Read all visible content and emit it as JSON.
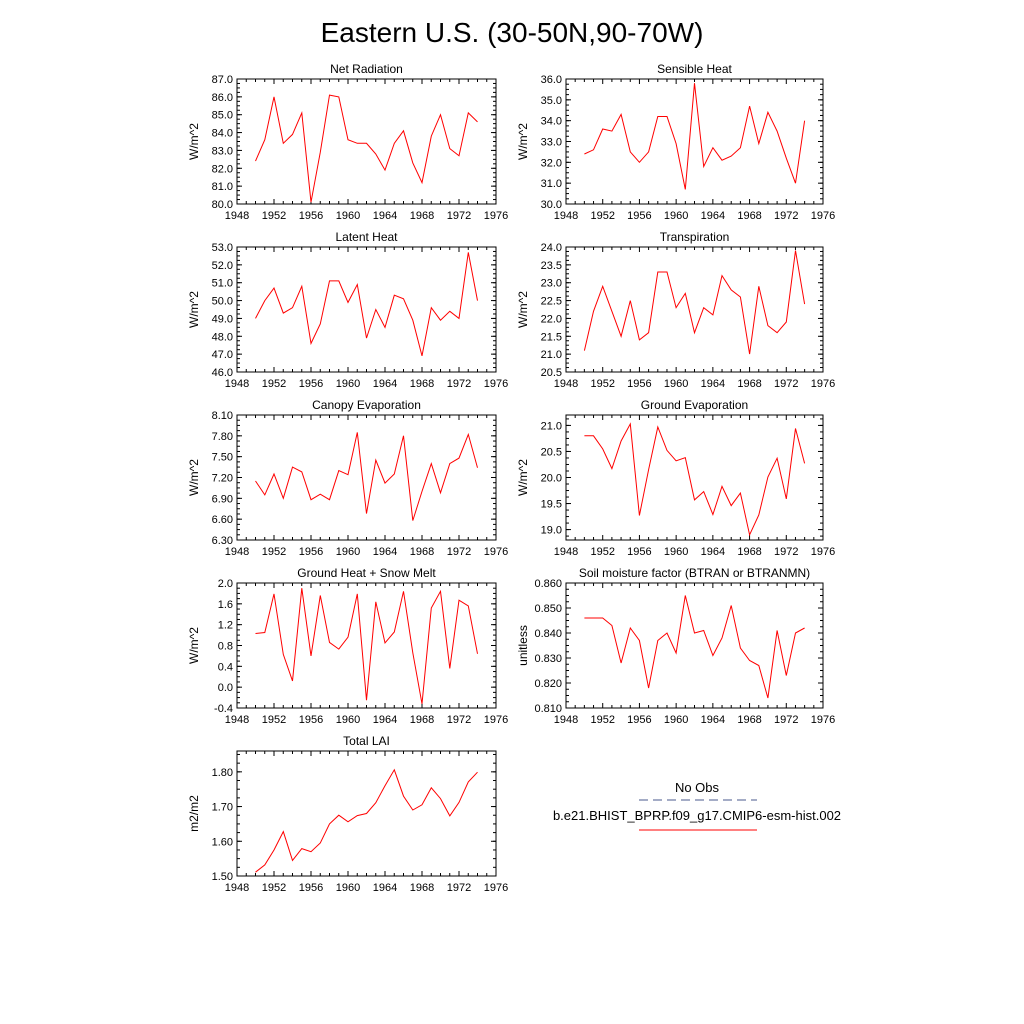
{
  "figure": {
    "title": "Eastern U.S. (30-50N,90-70W)",
    "line_color": "#ff0000",
    "legend": {
      "obs_label": "No Obs",
      "obs_style": "dashed",
      "obs_color": "#4a5a8c",
      "model_label": "b.e21.BHIST_BPRP.f09_g17.CMIP6-esm-hist.002",
      "model_color": "#ff0000"
    }
  },
  "chart_data": [
    {
      "type": "line",
      "title": "Net Radiation",
      "ylabel": "W/m^2",
      "xlim": [
        1948,
        1976
      ],
      "xticks": [
        1948,
        1952,
        1956,
        1960,
        1964,
        1968,
        1972,
        1976
      ],
      "ylim": [
        80.0,
        87.0
      ],
      "yticks": [
        "80.0",
        "81.0",
        "82.0",
        "83.0",
        "84.0",
        "85.0",
        "86.0",
        "87.0"
      ],
      "x": [
        1950,
        1951,
        1952,
        1953,
        1954,
        1955,
        1956,
        1957,
        1958,
        1959,
        1960,
        1961,
        1962,
        1963,
        1964,
        1965,
        1966,
        1967,
        1968,
        1969,
        1970,
        1971,
        1972,
        1973,
        1974
      ],
      "series": [
        {
          "values": [
            82.4,
            83.6,
            86.0,
            83.4,
            83.9,
            85.1,
            80.1,
            82.9,
            86.1,
            86.0,
            83.6,
            83.4,
            83.4,
            82.8,
            81.9,
            83.4,
            84.1,
            82.3,
            81.2,
            83.8,
            85.0,
            83.1,
            82.7,
            85.1,
            84.6
          ]
        }
      ]
    },
    {
      "type": "line",
      "title": "Sensible Heat",
      "ylabel": "W/m^2",
      "xlim": [
        1948,
        1976
      ],
      "xticks": [
        1948,
        1952,
        1956,
        1960,
        1964,
        1968,
        1972,
        1976
      ],
      "ylim": [
        30.0,
        36.0
      ],
      "yticks": [
        "30.0",
        "31.0",
        "32.0",
        "33.0",
        "34.0",
        "35.0",
        "36.0"
      ],
      "x": [
        1950,
        1951,
        1952,
        1953,
        1954,
        1955,
        1956,
        1957,
        1958,
        1959,
        1960,
        1961,
        1962,
        1963,
        1964,
        1965,
        1966,
        1967,
        1968,
        1969,
        1970,
        1971,
        1972,
        1973,
        1974
      ],
      "series": [
        {
          "values": [
            32.4,
            32.6,
            33.6,
            33.5,
            34.3,
            32.5,
            32.0,
            32.5,
            34.2,
            34.2,
            32.9,
            30.7,
            35.8,
            31.8,
            32.7,
            32.1,
            32.3,
            32.7,
            34.7,
            32.9,
            34.4,
            33.5,
            32.2,
            31.0,
            34.0
          ]
        }
      ]
    },
    {
      "type": "line",
      "title": "Latent Heat",
      "ylabel": "W/m^2",
      "xlim": [
        1948,
        1976
      ],
      "xticks": [
        1948,
        1952,
        1956,
        1960,
        1964,
        1968,
        1972,
        1976
      ],
      "ylim": [
        46.0,
        53.0
      ],
      "yticks": [
        "46.0",
        "47.0",
        "48.0",
        "49.0",
        "50.0",
        "51.0",
        "52.0",
        "53.0"
      ],
      "x": [
        1950,
        1951,
        1952,
        1953,
        1954,
        1955,
        1956,
        1957,
        1958,
        1959,
        1960,
        1961,
        1962,
        1963,
        1964,
        1965,
        1966,
        1967,
        1968,
        1969,
        1970,
        1971,
        1972,
        1973,
        1974
      ],
      "series": [
        {
          "values": [
            49.0,
            50.0,
            50.7,
            49.3,
            49.6,
            50.8,
            47.6,
            48.7,
            51.1,
            51.1,
            49.9,
            50.9,
            47.9,
            49.5,
            48.5,
            50.3,
            50.1,
            48.9,
            46.9,
            49.6,
            48.9,
            49.4,
            49.0,
            52.7,
            50.0
          ]
        }
      ]
    },
    {
      "type": "line",
      "title": "Transpiration",
      "ylabel": "W/m^2",
      "xlim": [
        1948,
        1976
      ],
      "xticks": [
        1948,
        1952,
        1956,
        1960,
        1964,
        1968,
        1972,
        1976
      ],
      "ylim": [
        20.5,
        24.0
      ],
      "yticks": [
        "20.5",
        "21.0",
        "21.5",
        "22.0",
        "22.5",
        "23.0",
        "23.5",
        "24.0"
      ],
      "x": [
        1950,
        1951,
        1952,
        1953,
        1954,
        1955,
        1956,
        1957,
        1958,
        1959,
        1960,
        1961,
        1962,
        1963,
        1964,
        1965,
        1966,
        1967,
        1968,
        1969,
        1970,
        1971,
        1972,
        1973,
        1974
      ],
      "series": [
        {
          "values": [
            21.1,
            22.2,
            22.9,
            22.2,
            21.5,
            22.5,
            21.4,
            21.6,
            23.3,
            23.3,
            22.3,
            22.7,
            21.6,
            22.3,
            22.1,
            23.2,
            22.8,
            22.6,
            21.0,
            22.9,
            21.8,
            21.6,
            21.9,
            23.9,
            22.4
          ]
        }
      ]
    },
    {
      "type": "line",
      "title": "Canopy Evaporation",
      "ylabel": "W/m^2",
      "xlim": [
        1948,
        1976
      ],
      "xticks": [
        1948,
        1952,
        1956,
        1960,
        1964,
        1968,
        1972,
        1976
      ],
      "ylim": [
        6.3,
        8.1
      ],
      "yticks": [
        "6.30",
        "6.60",
        "6.90",
        "7.20",
        "7.50",
        "7.80",
        "8.10"
      ],
      "x": [
        1950,
        1951,
        1952,
        1953,
        1954,
        1955,
        1956,
        1957,
        1958,
        1959,
        1960,
        1961,
        1962,
        1963,
        1964,
        1965,
        1966,
        1967,
        1968,
        1969,
        1970,
        1971,
        1972,
        1973,
        1974
      ],
      "series": [
        {
          "values": [
            7.15,
            6.95,
            7.25,
            6.9,
            7.35,
            7.28,
            6.88,
            6.96,
            6.88,
            7.3,
            7.24,
            7.85,
            6.68,
            7.45,
            7.12,
            7.25,
            7.8,
            6.58,
            7.0,
            7.4,
            6.98,
            7.4,
            7.48,
            7.82,
            7.34
          ]
        }
      ]
    },
    {
      "type": "line",
      "title": "Ground Evaporation",
      "ylabel": "W/m^2",
      "xlim": [
        1948,
        1976
      ],
      "xticks": [
        1948,
        1952,
        1956,
        1960,
        1964,
        1968,
        1972,
        1976
      ],
      "ylim": [
        18.8,
        21.2
      ],
      "yticks": [
        "19.0",
        "19.5",
        "20.0",
        "20.5",
        "21.0"
      ],
      "x": [
        1950,
        1951,
        1952,
        1953,
        1954,
        1955,
        1956,
        1957,
        1958,
        1959,
        1960,
        1961,
        1962,
        1963,
        1964,
        1965,
        1966,
        1967,
        1968,
        1969,
        1970,
        1971,
        1972,
        1973,
        1974
      ],
      "series": [
        {
          "values": [
            20.8,
            20.8,
            20.55,
            20.17,
            20.7,
            21.03,
            19.27,
            20.15,
            20.97,
            20.52,
            20.32,
            20.38,
            19.57,
            19.73,
            19.29,
            19.83,
            19.46,
            19.7,
            18.9,
            19.28,
            20.01,
            20.37,
            19.59,
            20.94,
            20.27
          ]
        }
      ]
    },
    {
      "type": "line",
      "title": "Ground Heat + Snow Melt",
      "ylabel": "W/m^2",
      "xlim": [
        1948,
        1976
      ],
      "xticks": [
        1948,
        1952,
        1956,
        1960,
        1964,
        1968,
        1972,
        1976
      ],
      "ylim": [
        -0.4,
        2.0
      ],
      "yticks": [
        "-0.4",
        "0.0",
        "0.4",
        "0.8",
        "1.2",
        "1.6",
        "2.0"
      ],
      "x": [
        1950,
        1951,
        1952,
        1953,
        1954,
        1955,
        1956,
        1957,
        1958,
        1959,
        1960,
        1961,
        1962,
        1963,
        1964,
        1965,
        1966,
        1967,
        1968,
        1969,
        1970,
        1971,
        1972,
        1973,
        1974
      ],
      "series": [
        {
          "values": [
            1.03,
            1.05,
            1.79,
            0.63,
            0.12,
            1.9,
            0.6,
            1.76,
            0.86,
            0.73,
            0.96,
            1.79,
            -0.25,
            1.64,
            0.85,
            1.06,
            1.84,
            0.66,
            -0.32,
            1.52,
            1.84,
            0.36,
            1.67,
            1.56,
            0.64
          ]
        }
      ]
    },
    {
      "type": "line",
      "title": "Soil moisture factor (BTRAN or BTRANMN)",
      "ylabel": "unitless",
      "xlim": [
        1948,
        1976
      ],
      "xticks": [
        1948,
        1952,
        1956,
        1960,
        1964,
        1968,
        1972,
        1976
      ],
      "ylim": [
        0.81,
        0.86
      ],
      "yticks": [
        "0.810",
        "0.820",
        "0.830",
        "0.840",
        "0.850",
        "0.860"
      ],
      "x": [
        1950,
        1951,
        1952,
        1953,
        1954,
        1955,
        1956,
        1957,
        1958,
        1959,
        1960,
        1961,
        1962,
        1963,
        1964,
        1965,
        1966,
        1967,
        1968,
        1969,
        1970,
        1971,
        1972,
        1973,
        1974
      ],
      "series": [
        {
          "values": [
            0.846,
            0.846,
            0.846,
            0.843,
            0.828,
            0.842,
            0.837,
            0.818,
            0.837,
            0.84,
            0.832,
            0.855,
            0.84,
            0.841,
            0.831,
            0.838,
            0.851,
            0.834,
            0.829,
            0.827,
            0.814,
            0.841,
            0.823,
            0.84,
            0.842
          ]
        }
      ]
    },
    {
      "type": "line",
      "title": "Total LAI",
      "ylabel": "m2/m2",
      "xlim": [
        1948,
        1976
      ],
      "xticks": [
        1948,
        1952,
        1956,
        1960,
        1964,
        1968,
        1972,
        1976
      ],
      "ylim": [
        1.5,
        1.86
      ],
      "yticks": [
        "1.50",
        "1.60",
        "1.70",
        "1.80"
      ],
      "x": [
        1950,
        1951,
        1952,
        1953,
        1954,
        1955,
        1956,
        1957,
        1958,
        1959,
        1960,
        1961,
        1962,
        1963,
        1964,
        1965,
        1966,
        1967,
        1968,
        1969,
        1970,
        1971,
        1972,
        1973,
        1974
      ],
      "series": [
        {
          "values": [
            1.511,
            1.532,
            1.575,
            1.628,
            1.545,
            1.579,
            1.57,
            1.595,
            1.65,
            1.675,
            1.656,
            1.674,
            1.68,
            1.711,
            1.76,
            1.806,
            1.73,
            1.69,
            1.705,
            1.754,
            1.723,
            1.673,
            1.712,
            1.771,
            1.799
          ]
        }
      ]
    }
  ]
}
